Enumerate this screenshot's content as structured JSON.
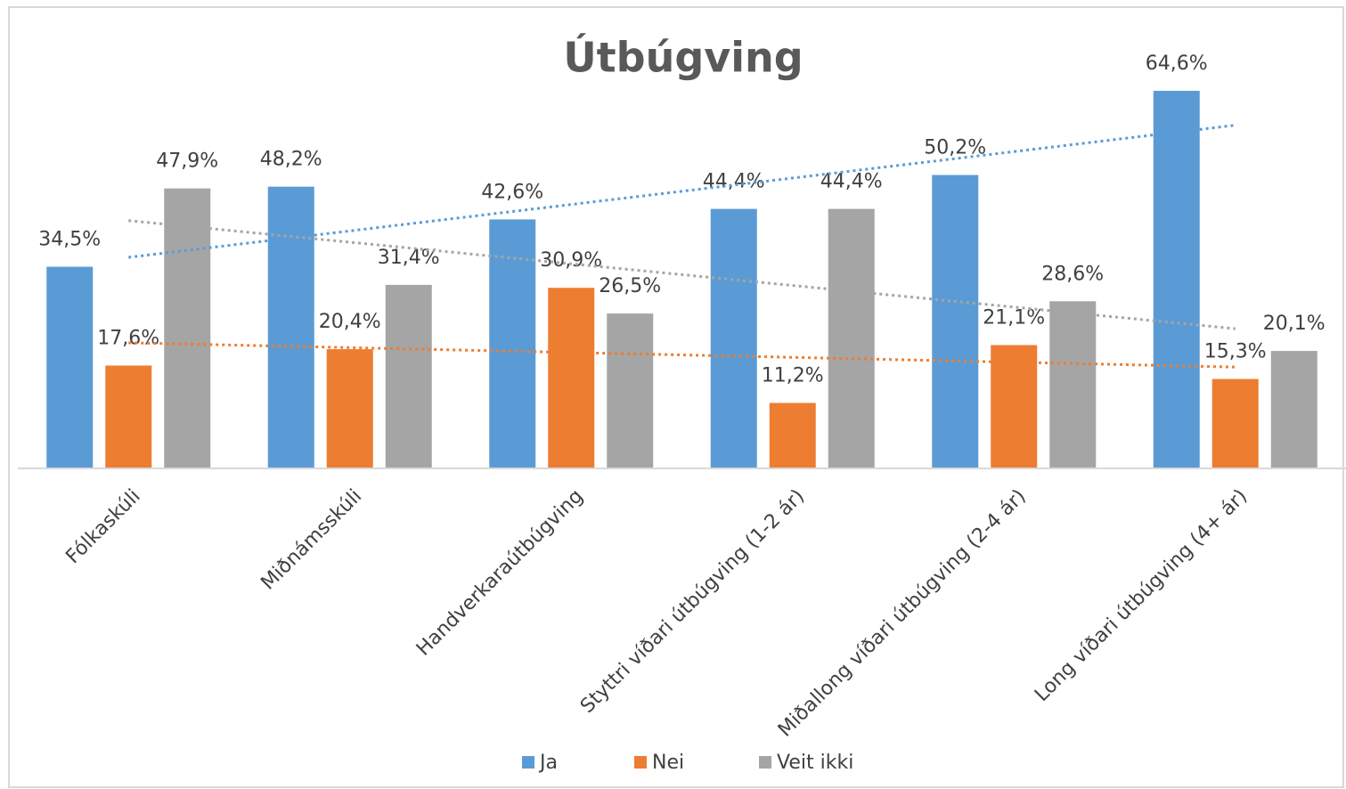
{
  "chart_data": {
    "type": "bar",
    "title": "Útbúgving",
    "categories": [
      "Fólkaskúli",
      "Miðnámsskúli",
      "Handverkaraútbúgving",
      "Styttri víðari útbúgving (1-2 ár)",
      "Miðallong víðari útbúgving (2-4 ár)",
      "Long víðari útbúgving (4+ ár)"
    ],
    "series": [
      {
        "name": "Ja",
        "color": "#5b9bd5",
        "values": [
          34.5,
          48.2,
          42.6,
          44.4,
          50.2,
          64.6
        ],
        "value_labels": [
          "34,5%",
          "48,2%",
          "42,6%",
          "44,4%",
          "50,2%",
          "64,6%"
        ]
      },
      {
        "name": "Nei",
        "color": "#ed7d31",
        "values": [
          17.6,
          20.4,
          30.9,
          11.2,
          21.1,
          15.3
        ],
        "value_labels": [
          "17,6%",
          "20,4%",
          "30,9%",
          "11,2%",
          "21,1%",
          "15,3%"
        ]
      },
      {
        "name": "Veit ikki",
        "color": "#a5a5a5",
        "values": [
          47.9,
          31.4,
          26.5,
          44.4,
          28.6,
          20.1
        ],
        "value_labels": [
          "47,9%",
          "31,4%",
          "26,5%",
          "44,4%",
          "28,6%",
          "20,1%"
        ]
      }
    ],
    "ylim": [
      0,
      70
    ],
    "trendlines": true,
    "legend": "bottom"
  }
}
